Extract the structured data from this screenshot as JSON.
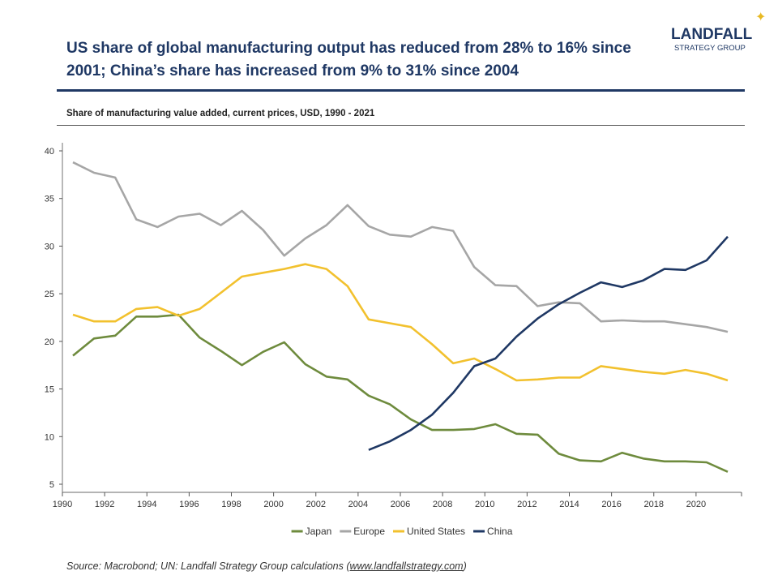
{
  "header": {
    "title": "US share of global manufacturing output has reduced from 28% to 16% since 2001; China’s share has increased from 9% to 31% since 2004",
    "logo": {
      "line1": "LANDFALL",
      "line2": "STRATEGY GROUP"
    },
    "subtitle": "Share of manufacturing value added, current prices, USD, 1990 - 2021"
  },
  "footer": {
    "source_prefix": "Source: Macrobond; UN: Landfall Strategy Group calculations (",
    "source_link": "www.landfallstrategy.com",
    "source_suffix": ")"
  },
  "chart_data": {
    "type": "line",
    "title": "",
    "xlim": [
      1990,
      2022
    ],
    "ylim": [
      5,
      40
    ],
    "x_ticks": [
      "1990",
      "1992",
      "1994",
      "1996",
      "1998",
      "2000",
      "2002",
      "2004",
      "2006",
      "2008",
      "2010",
      "2012",
      "2014",
      "2016",
      "2018",
      "2020"
    ],
    "y_ticks": [
      "5",
      "10",
      "15",
      "20",
      "25",
      "30",
      "35",
      "40"
    ],
    "grid": false,
    "legend": "bottom",
    "x": [
      1990,
      1991,
      1992,
      1993,
      1994,
      1995,
      1996,
      1997,
      1998,
      1999,
      2000,
      2001,
      2002,
      2003,
      2004,
      2005,
      2006,
      2007,
      2008,
      2009,
      2010,
      2011,
      2012,
      2013,
      2014,
      2015,
      2016,
      2017,
      2018,
      2019,
      2020,
      2021
    ],
    "series": [
      {
        "name": "Japan",
        "color": "#6e8b3d",
        "values": [
          18.5,
          20.3,
          20.6,
          22.6,
          22.6,
          22.8,
          20.4,
          19.0,
          17.5,
          18.9,
          19.9,
          17.6,
          16.3,
          16.0,
          14.3,
          13.4,
          11.8,
          10.7,
          10.7,
          10.8,
          11.3,
          10.3,
          10.2,
          8.2,
          7.5,
          7.4,
          8.3,
          7.7,
          7.4,
          7.4,
          7.3,
          6.3
        ]
      },
      {
        "name": "Europe",
        "color": "#a6a6a6",
        "values": [
          38.8,
          37.7,
          37.2,
          32.8,
          32.0,
          33.1,
          33.4,
          32.2,
          33.7,
          31.7,
          29.0,
          30.8,
          32.2,
          34.3,
          32.1,
          31.2,
          31.0,
          32.0,
          31.6,
          27.8,
          25.9,
          25.8,
          23.7,
          24.1,
          24.0,
          22.1,
          22.2,
          22.1,
          22.1,
          21.8,
          21.5,
          21.0
        ]
      },
      {
        "name": "United States",
        "color": "#f2c12e",
        "values": [
          22.8,
          22.1,
          22.1,
          23.4,
          23.6,
          22.7,
          23.4,
          25.1,
          26.8,
          27.2,
          27.6,
          28.1,
          27.6,
          25.8,
          22.3,
          21.9,
          21.5,
          19.7,
          17.7,
          18.2,
          17.1,
          15.9,
          16.0,
          16.2,
          16.2,
          17.4,
          17.1,
          16.8,
          16.6,
          17.0,
          16.6,
          15.9
        ]
      },
      {
        "name": "China",
        "color": "#1f3864",
        "values": [
          null,
          null,
          null,
          null,
          null,
          null,
          null,
          null,
          null,
          null,
          null,
          null,
          null,
          null,
          8.6,
          9.5,
          10.7,
          12.3,
          14.6,
          17.4,
          18.2,
          20.5,
          22.4,
          23.9,
          25.1,
          26.2,
          25.7,
          26.4,
          27.6,
          27.5,
          28.5,
          31.0
        ]
      }
    ]
  }
}
